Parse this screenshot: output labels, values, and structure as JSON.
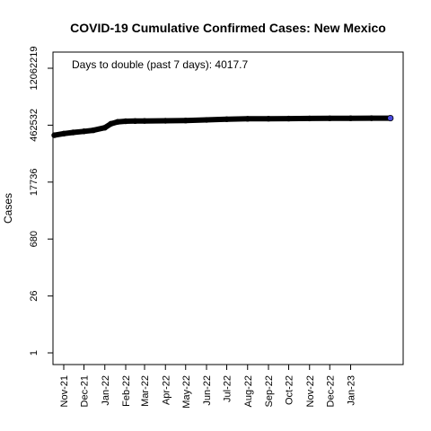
{
  "chart_data": {
    "type": "scatter",
    "title": "COVID-19 Cumulative Confirmed Cases: New Mexico",
    "ylabel": "Cases",
    "xlabel": "",
    "y_scale": "log",
    "y_ticks": [
      1,
      26,
      680,
      17736,
      462532,
      12062219
    ],
    "y_tick_labels": [
      "1",
      "26",
      "680",
      "17736",
      "462532",
      "12062219"
    ],
    "ylim": [
      1,
      12062219
    ],
    "xlim": [
      "2021-10-16",
      "2023-03-20"
    ],
    "x_ticks": [
      "2021-11-01",
      "2021-12-01",
      "2022-01-01",
      "2022-02-01",
      "2022-03-01",
      "2022-04-01",
      "2022-05-01",
      "2022-06-01",
      "2022-07-01",
      "2022-08-01",
      "2022-09-01",
      "2022-10-01",
      "2022-11-01",
      "2022-12-01",
      "2023-01-01"
    ],
    "x_tick_labels": [
      "Nov-21",
      "Dec-21",
      "Jan-22",
      "Feb-22",
      "Mar-22",
      "Apr-22",
      "May-22",
      "Jun-22",
      "Jul-22",
      "Aug-22",
      "Sep-22",
      "Oct-22",
      "Nov-22",
      "Dec-22",
      "Jan-23"
    ],
    "annotation": "Days to double (past 7 days): 4017.7",
    "series": [
      {
        "color": "#000000",
        "x": [
          "2021-10-18",
          "2021-11-01",
          "2021-11-15",
          "2021-12-01",
          "2021-12-15",
          "2022-01-01",
          "2022-01-10",
          "2022-01-20",
          "2022-02-01",
          "2022-02-15",
          "2022-03-01",
          "2022-04-01",
          "2022-05-01",
          "2022-06-01",
          "2022-07-01",
          "2022-08-01",
          "2022-09-01",
          "2022-10-01",
          "2022-11-01",
          "2022-12-01",
          "2023-01-01",
          "2023-02-01",
          "2023-03-01"
        ],
        "y": [
          260000,
          285000,
          305000,
          325000,
          345000,
          400000,
          500000,
          560000,
          580000,
          585000,
          590000,
          595000,
          605000,
          625000,
          650000,
          665000,
          670000,
          675000,
          680000,
          685000,
          688000,
          690000,
          692000
        ]
      }
    ],
    "last_point_color": "#4a4adc"
  }
}
